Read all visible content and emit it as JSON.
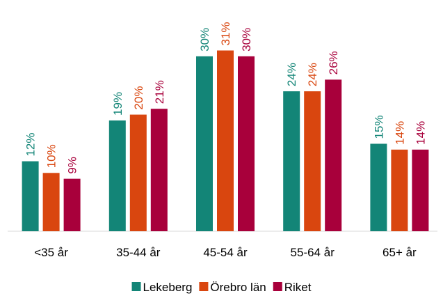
{
  "chart_data": {
    "type": "bar",
    "categories": [
      "<35 år",
      "35-44 år",
      "45-54 år",
      "55-64 år",
      "65+ år"
    ],
    "series": [
      {
        "name": "Lekeberg",
        "color": "#138577",
        "values": [
          12,
          19,
          30,
          24,
          15
        ],
        "value_labels": [
          "12%",
          "19%",
          "30%",
          "24%",
          "15%"
        ]
      },
      {
        "name": "Örebro län",
        "color": "#d9460f",
        "values": [
          10,
          20,
          31,
          24,
          14
        ],
        "value_labels": [
          "10%",
          "20%",
          "31%",
          "24%",
          "14%"
        ]
      },
      {
        "name": "Riket",
        "color": "#a8003b",
        "values": [
          9,
          21,
          30,
          26,
          14
        ],
        "value_labels": [
          "9%",
          "21%",
          "30%",
          "26%",
          "14%"
        ]
      }
    ],
    "ylim": [
      0,
      35
    ],
    "legend": "bottom"
  }
}
